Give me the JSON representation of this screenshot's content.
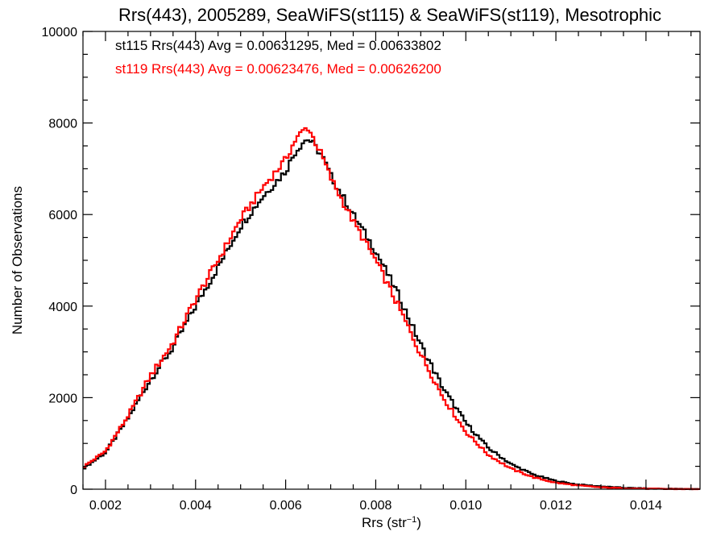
{
  "chart_data": {
    "type": "line",
    "title": "Rrs(443), 2005289, SeaWiFS(st115) & SeaWiFS(st119), Mesotrophic",
    "xlabel_main": "Rrs (str",
    "xlabel_sup": "−1",
    "xlabel_end": ")",
    "ylabel": "Number of Observations",
    "xlim": [
      0.0015,
      0.0152
    ],
    "ylim": [
      0,
      10000
    ],
    "grid": false,
    "xticks": [
      0.002,
      0.004,
      0.006,
      0.008,
      0.01,
      0.012,
      0.014
    ],
    "xtick_labels": [
      "0.002",
      "0.004",
      "0.006",
      "0.008",
      "0.010",
      "0.012",
      "0.014"
    ],
    "yticks": [
      0,
      2000,
      4000,
      6000,
      8000,
      10000
    ],
    "ytick_labels": [
      "0",
      "2000",
      "4000",
      "6000",
      "8000",
      "10000"
    ],
    "annotations": [
      {
        "text": "st115 Rrs(443) Avg = 0.00631295, Med = 0.00633802",
        "color": "#000000"
      },
      {
        "text": "st119 Rrs(443) Avg = 0.00623476, Med = 0.00626200",
        "color": "#ff0000"
      }
    ],
    "series": [
      {
        "color": "#000000",
        "x": [
          0.0015,
          0.002,
          0.0025,
          0.003,
          0.0035,
          0.004,
          0.0045,
          0.005,
          0.0055,
          0.006,
          0.0062,
          0.0064,
          0.0065,
          0.0066,
          0.0068,
          0.007,
          0.0075,
          0.008,
          0.0085,
          0.009,
          0.0095,
          0.01,
          0.0105,
          0.011,
          0.0115,
          0.012,
          0.0125,
          0.013,
          0.0135,
          0.014,
          0.0145,
          0.0152
        ],
        "y": [
          450,
          800,
          1550,
          2400,
          3100,
          4000,
          4850,
          5750,
          6400,
          6950,
          7350,
          7600,
          7650,
          7550,
          7300,
          6850,
          6000,
          5200,
          4250,
          3150,
          2200,
          1450,
          900,
          550,
          320,
          180,
          100,
          60,
          30,
          15,
          8,
          2
        ]
      },
      {
        "color": "#ff0000",
        "x": [
          0.0015,
          0.002,
          0.0025,
          0.003,
          0.0035,
          0.004,
          0.0045,
          0.005,
          0.0055,
          0.006,
          0.0062,
          0.0064,
          0.0065,
          0.0066,
          0.0068,
          0.007,
          0.0075,
          0.008,
          0.0085,
          0.009,
          0.0095,
          0.01,
          0.0105,
          0.011,
          0.0115,
          0.012,
          0.0125,
          0.013,
          0.0135,
          0.014,
          0.0145,
          0.0152
        ],
        "y": [
          480,
          830,
          1600,
          2480,
          3200,
          4150,
          5000,
          5900,
          6600,
          7200,
          7600,
          7850,
          7900,
          7700,
          7300,
          6800,
          5850,
          5000,
          4000,
          2950,
          2000,
          1250,
          750,
          450,
          260,
          140,
          80,
          40,
          20,
          10,
          5,
          1
        ]
      }
    ]
  }
}
